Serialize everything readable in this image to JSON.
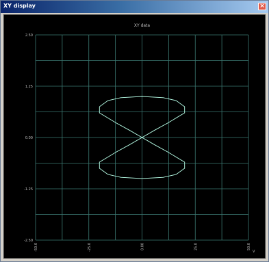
{
  "window": {
    "title": "XY display",
    "close_glyph": "×"
  },
  "colors": {
    "background": "#000000",
    "grid": "#3c7a73",
    "trace": "#b8ffe8",
    "text": "#c0c0c0"
  },
  "chart_data": {
    "type": "line",
    "title": "XY data",
    "xlabel": "",
    "ylabel": "",
    "xlim": [
      -2.5,
      2.5
    ],
    "ylim": [
      -2.5,
      2.5
    ],
    "y_tick_labels": [
      "2.50",
      "1.25",
      "0.00",
      "-1.25",
      "-2.50"
    ],
    "x_tick_labels": [
      "-50.0",
      "-25.0",
      "0.00",
      "25.0",
      "50.0"
    ],
    "x_unit": "V",
    "grid": true,
    "series": [
      {
        "points": [
          [
            -1.0,
            0.75
          ],
          [
            -1.0,
            0.6
          ],
          [
            -0.6,
            0.35
          ],
          [
            -0.3,
            0.18
          ],
          [
            0.0,
            0.0
          ],
          [
            0.3,
            -0.18
          ],
          [
            0.6,
            -0.35
          ],
          [
            1.0,
            -0.6
          ],
          [
            1.0,
            -0.75
          ],
          [
            0.8,
            -0.9
          ],
          [
            0.5,
            -0.97
          ],
          [
            0.0,
            -1.0
          ],
          [
            -0.5,
            -0.97
          ],
          [
            -0.8,
            -0.9
          ],
          [
            -1.0,
            -0.75
          ],
          [
            -1.0,
            -0.6
          ],
          [
            -0.6,
            -0.35
          ],
          [
            -0.3,
            -0.18
          ],
          [
            0.0,
            0.0
          ],
          [
            0.3,
            0.18
          ],
          [
            0.6,
            0.35
          ],
          [
            1.0,
            0.6
          ],
          [
            1.0,
            0.75
          ],
          [
            0.8,
            0.9
          ],
          [
            0.5,
            0.97
          ],
          [
            0.0,
            1.0
          ],
          [
            -0.5,
            0.97
          ],
          [
            -0.8,
            0.9
          ],
          [
            -1.0,
            0.75
          ]
        ]
      }
    ]
  }
}
